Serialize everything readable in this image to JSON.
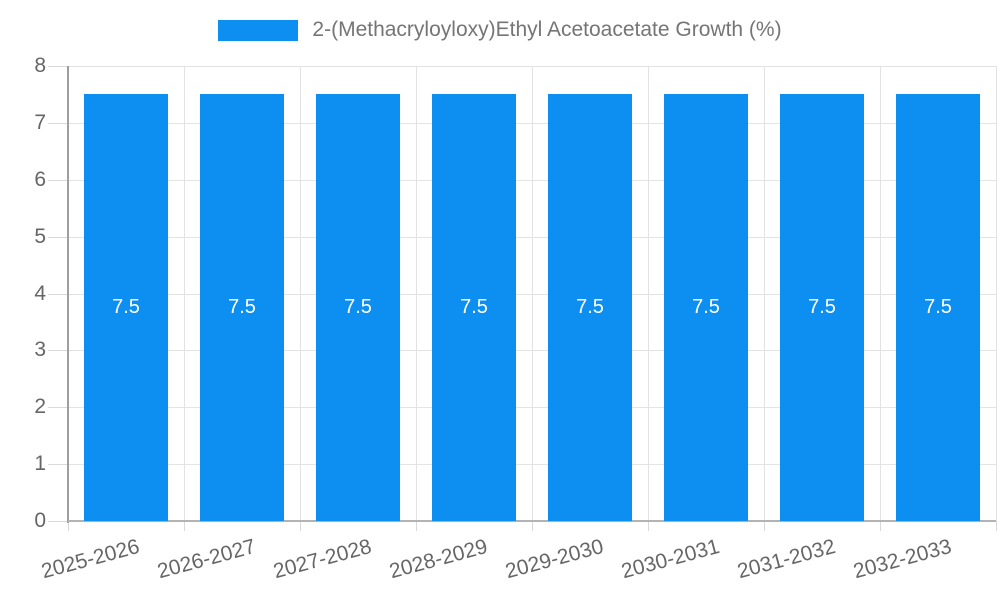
{
  "legend": {
    "label": "2-(Methacryloyloxy)Ethyl Acetoacetate Growth (%)"
  },
  "chart_data": {
    "type": "bar",
    "title": "2-(Methacryloyloxy)Ethyl Acetoacetate Growth (%)",
    "categories": [
      "2025-2026",
      "2026-2027",
      "2027-2028",
      "2028-2029",
      "2029-2030",
      "2030-2031",
      "2031-2032",
      "2032-2033"
    ],
    "values": [
      7.5,
      7.5,
      7.5,
      7.5,
      7.5,
      7.5,
      7.5,
      7.5
    ],
    "bar_value_labels": [
      "7.5",
      "7.5",
      "7.5",
      "7.5",
      "7.5",
      "7.5",
      "7.5",
      "7.5"
    ],
    "xlabel": "",
    "ylabel": "",
    "ylim": [
      0,
      8
    ],
    "y_ticks": [
      0,
      1,
      2,
      3,
      4,
      5,
      6,
      7,
      8
    ],
    "grid": true,
    "legend_position": "top-center",
    "colors": {
      "bar": "#0d8ff2",
      "bar_value_text": "#ffffff",
      "gridline": "#e3e3e3",
      "tick": "#d9d9d9",
      "axis_line_y": "#9e9e9e",
      "axis_line_x": "#b3b3b3",
      "axis_text": "#666666",
      "legend_text": "#757575",
      "background": "#ffffff"
    }
  }
}
